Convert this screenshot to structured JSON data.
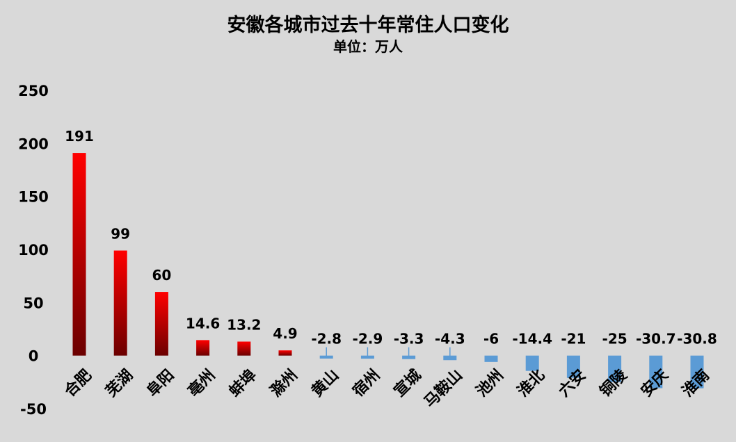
{
  "chart_data": {
    "type": "bar",
    "title": "安徽各城市过去十年常住人口变化",
    "subtitle": "单位：万人",
    "categories": [
      "合肥",
      "芜湖",
      "阜阳",
      "亳州",
      "蚌埠",
      "滁州",
      "黄山",
      "宿州",
      "宣城",
      "马鞍山",
      "池州",
      "淮北",
      "六安",
      "铜陵",
      "安庆",
      "淮南"
    ],
    "values": [
      191,
      99,
      60,
      14.6,
      13.2,
      4.9,
      -2.8,
      -2.9,
      -3.3,
      -4.3,
      -6,
      -14.4,
      -21,
      -25,
      -30.7,
      -30.8
    ],
    "data_labels": [
      "191",
      "99",
      "60",
      "14.6",
      "13.2",
      "4.9",
      "-2.8",
      "-2.9",
      "-3.3",
      "-4.3",
      "-6",
      "-14.4",
      "-21",
      "-25",
      "-30.7",
      "-30.8"
    ],
    "ylim": [
      -50,
      250
    ],
    "yticks": [
      250,
      200,
      150,
      100,
      50,
      0,
      -50
    ],
    "grid": false,
    "legend": "none",
    "colors": {
      "positive_top": "#ff0000",
      "positive_bottom": "#6b0000",
      "negative": "#5b9bd5",
      "background": "#d9d9d9"
    }
  }
}
